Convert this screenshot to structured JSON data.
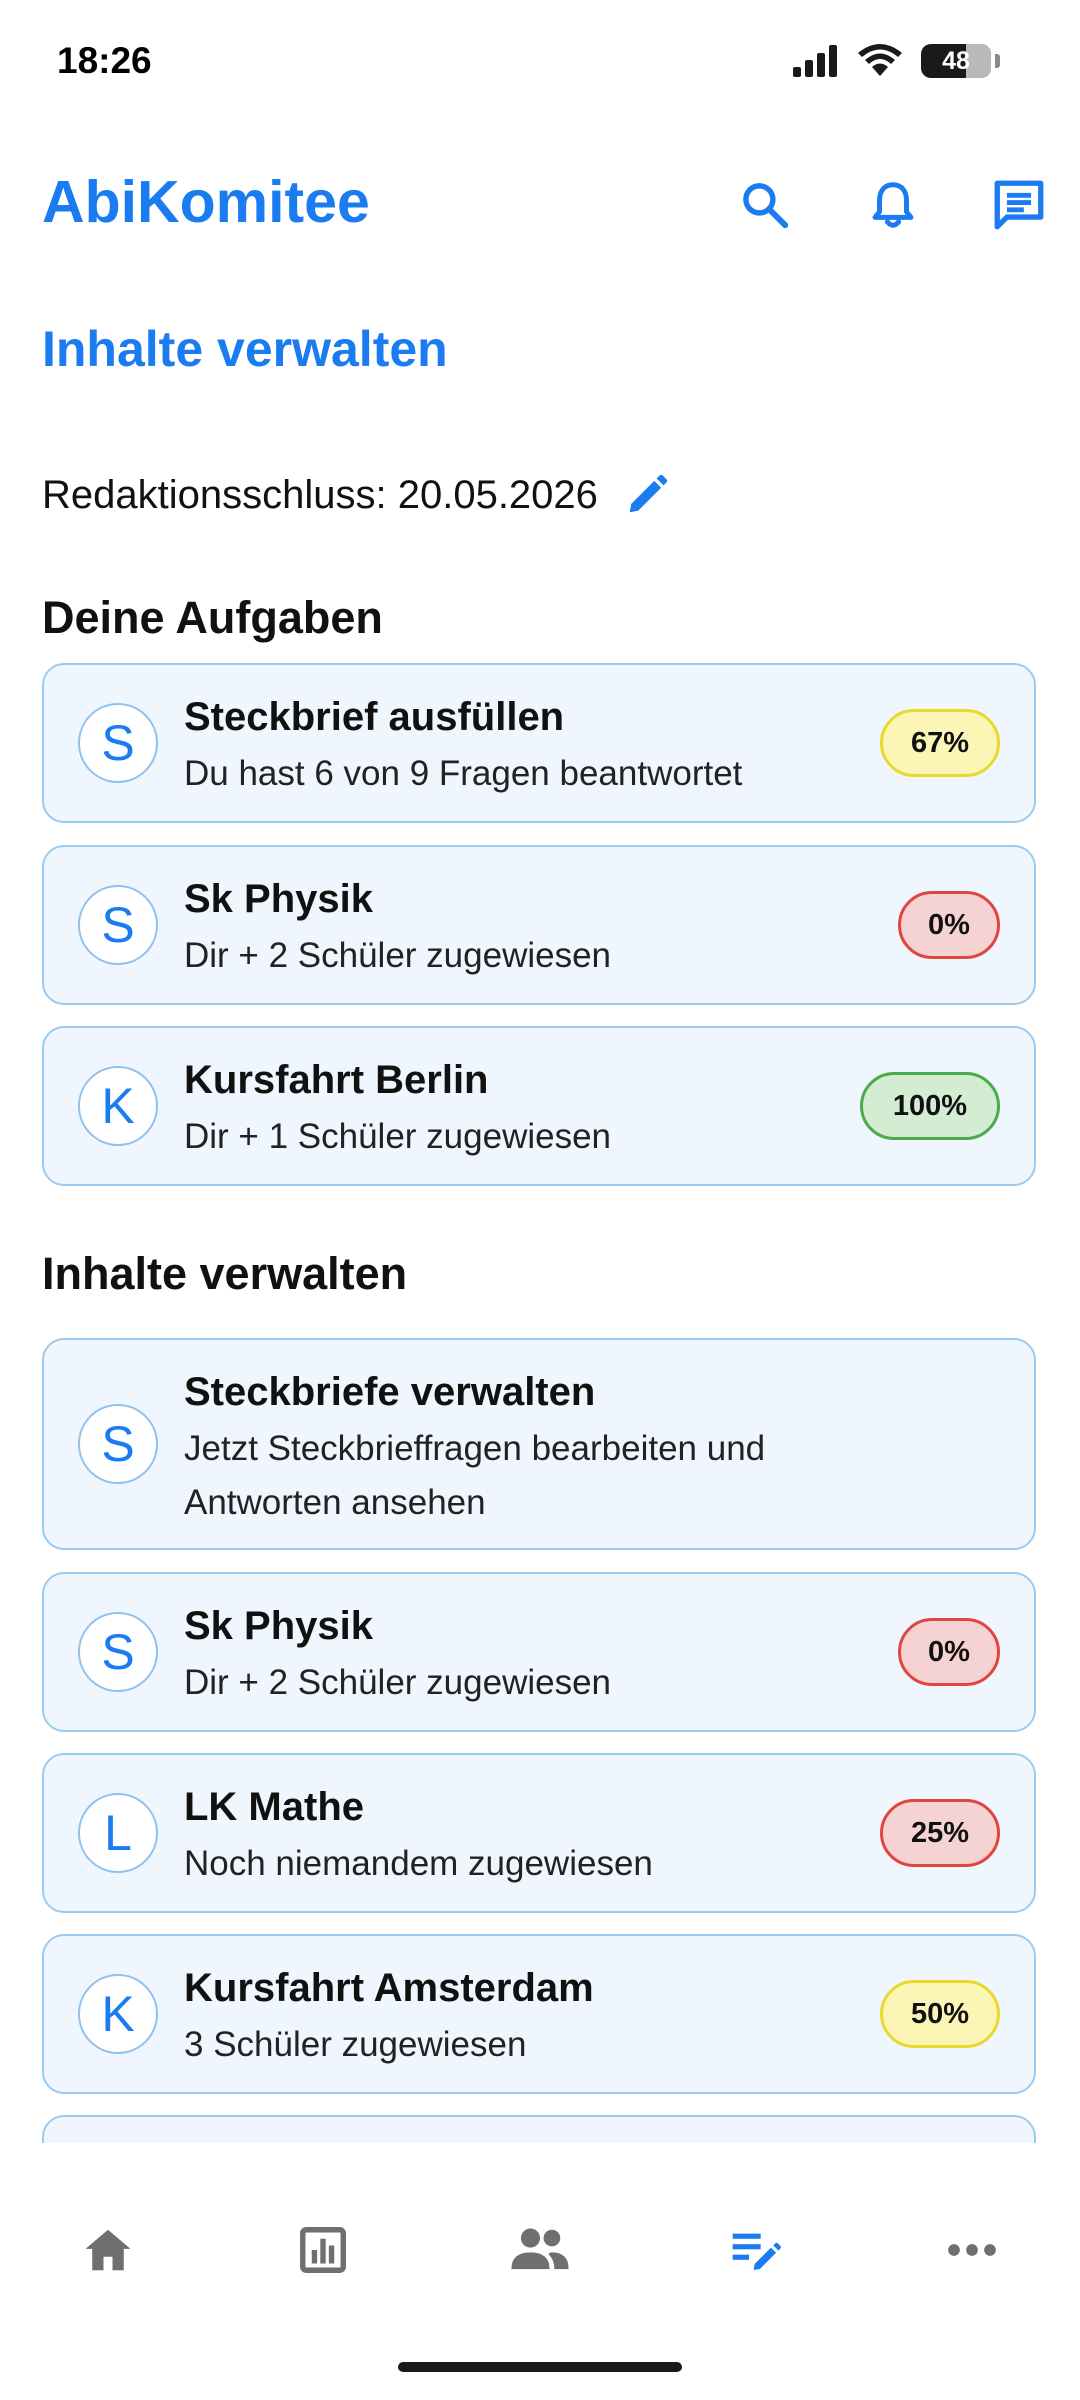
{
  "status": {
    "time": "18:26",
    "battery": "48"
  },
  "app": {
    "title": "AbiKomitee"
  },
  "icons": {
    "search": "search-icon",
    "notifications": "bell-icon",
    "messages": "message-icon",
    "edit": "pencil-icon"
  },
  "page": {
    "title": "Inhalte verwalten",
    "deadline_label": "Redaktionsschluss: 20.05.2026"
  },
  "tasks": {
    "heading": "Deine Aufgaben",
    "items": [
      {
        "initial": "S",
        "title": "Steckbrief ausfüllen",
        "subtitle": "Du hast 6 von 9 Fragen beantwortet",
        "progress": "67%",
        "status": "yellow"
      },
      {
        "initial": "S",
        "title": "Sk Physik",
        "subtitle": "Dir + 2 Schüler zugewiesen",
        "progress": "0%",
        "status": "red"
      },
      {
        "initial": "K",
        "title": "Kursfahrt Berlin",
        "subtitle": "Dir + 1 Schüler zugewiesen",
        "progress": "100%",
        "status": "green"
      }
    ]
  },
  "manage": {
    "heading": "Inhalte verwalten",
    "items": [
      {
        "initial": "S",
        "title": "Steckbriefe verwalten",
        "subtitle": "Jetzt Steckbrieffragen bearbeiten und Antworten ansehen"
      },
      {
        "initial": "S",
        "title": "Sk Physik",
        "subtitle": "Dir + 2 Schüler zugewiesen",
        "progress": "0%",
        "status": "red"
      },
      {
        "initial": "L",
        "title": "LK Mathe",
        "subtitle": "Noch niemandem zugewiesen",
        "progress": "25%",
        "status": "red"
      },
      {
        "initial": "K",
        "title": "Kursfahrt Amsterdam",
        "subtitle": "3 Schüler zugewiesen",
        "progress": "50%",
        "status": "yellow"
      }
    ]
  },
  "colors": {
    "accent": "#1a7cf0",
    "badge_yellow_bg": "#fbf6b6",
    "badge_yellow_border": "#e8d92a",
    "badge_red_bg": "#f6d3d3",
    "badge_red_border": "#e0453f",
    "badge_green_bg": "#d4ecd2",
    "badge_green_border": "#4caa4a",
    "nav_inactive": "#6f6f6f"
  },
  "bottom_nav": {
    "items": [
      "home-icon",
      "chart-icon",
      "group-icon",
      "edit-list-icon",
      "more-icon"
    ],
    "active": "edit-list-icon"
  }
}
